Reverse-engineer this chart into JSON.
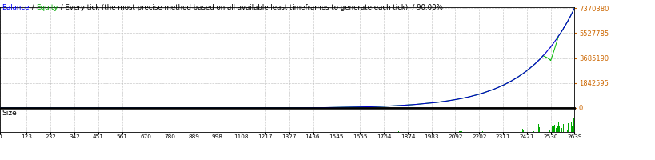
{
  "bg_color": "#ffffff",
  "plot_bg_color": "#ffffff",
  "grid_color": "#bbbbbb",
  "x_min": 0,
  "x_max": 2639,
  "x_ticks": [
    0,
    123,
    232,
    342,
    451,
    561,
    670,
    780,
    889,
    998,
    1108,
    1217,
    1327,
    1436,
    1545,
    1655,
    1764,
    1874,
    1983,
    2092,
    2202,
    2311,
    2421,
    2530,
    2639
  ],
  "y_min": 0,
  "y_max": 7370380,
  "y_ticks": [
    0,
    1842595,
    3685190,
    5527785,
    7370380
  ],
  "balance_color": "#0000cc",
  "equity_color": "#00bb00",
  "size_color": "#00aa00",
  "separator_color": "#000000",
  "size_label": "Size",
  "size_label_color": "#000000",
  "tick_color": "#cc6600",
  "title_parts": [
    [
      "Balance",
      "#0000ff"
    ],
    [
      " / ",
      "#000000"
    ],
    [
      "Equity",
      "#00aa00"
    ],
    [
      " / Every tick (the most precise method based on all available least timeframes to generate each tick)",
      "#000000"
    ],
    [
      "  / 90.00%",
      "#000000"
    ]
  ]
}
